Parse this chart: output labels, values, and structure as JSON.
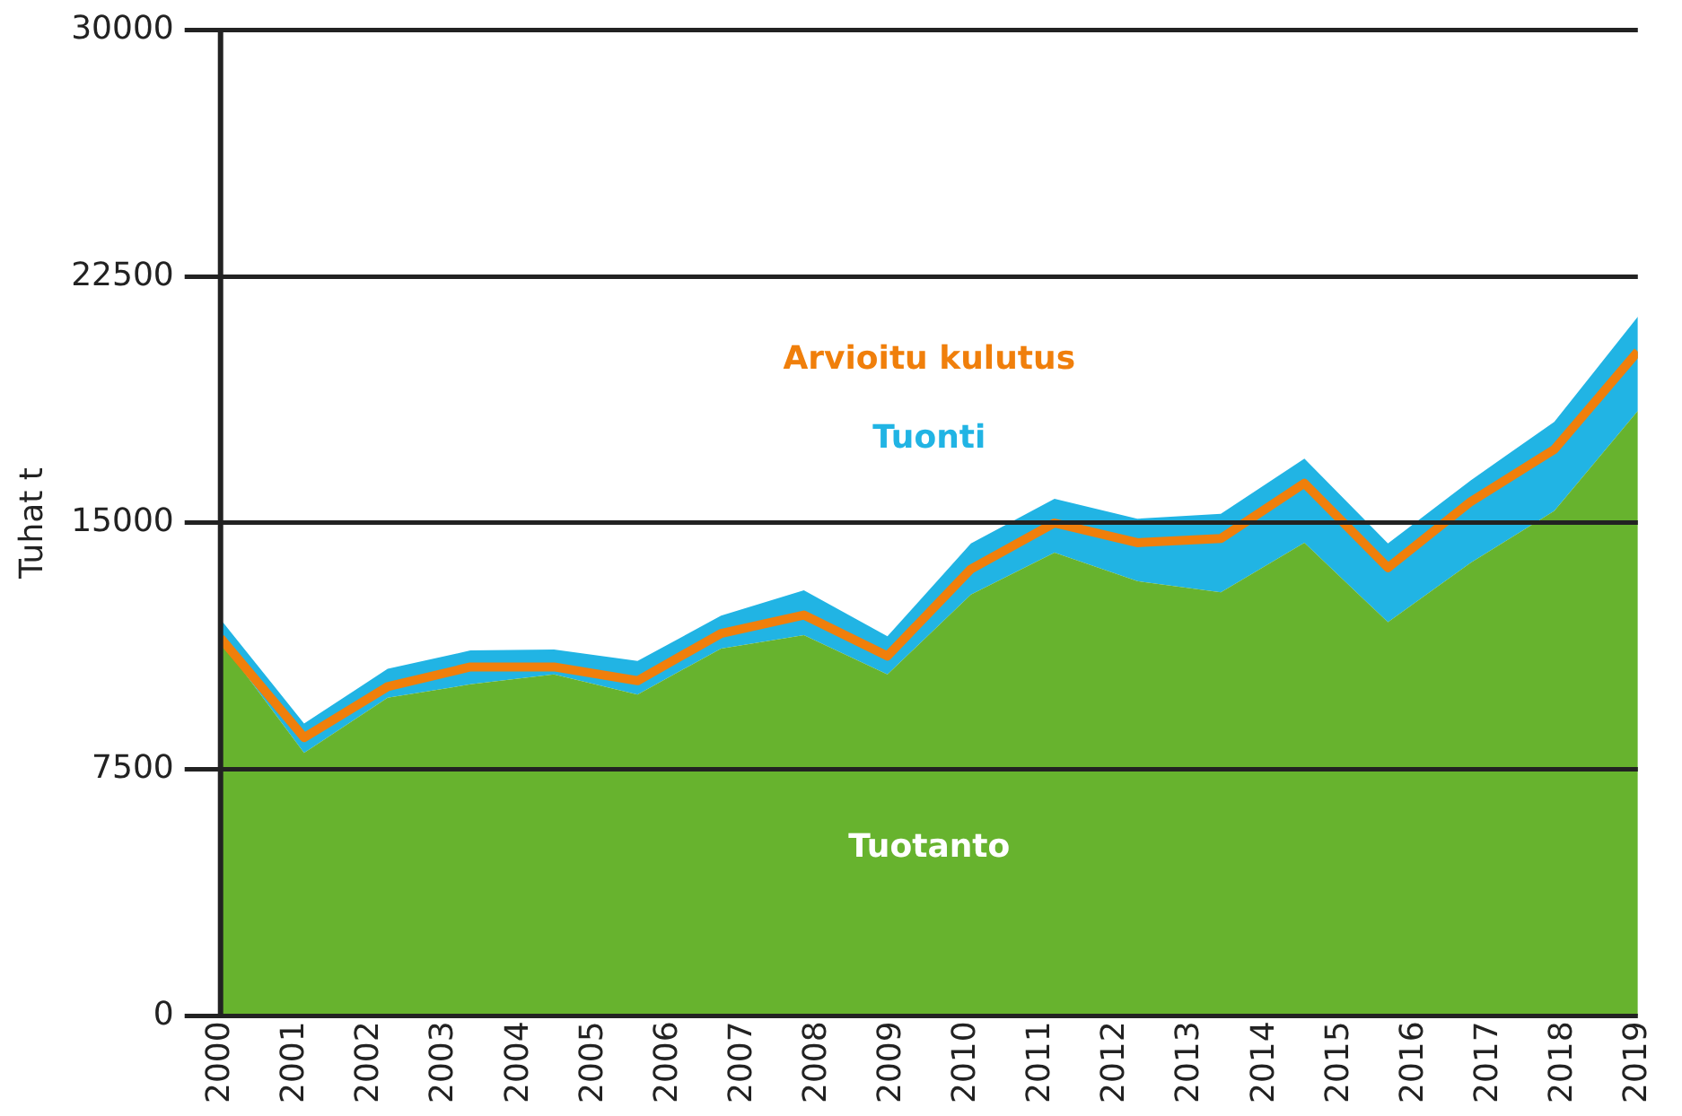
{
  "chart_data": {
    "type": "area",
    "ylabel": "Tuhat t",
    "stacked": true,
    "grid": "y",
    "legend": false,
    "marker": "none",
    "x": [
      2000,
      2001.12,
      2002.24,
      2003.35,
      2004.47,
      2005.59,
      2006.71,
      2007.82,
      2008.94,
      2010.06,
      2011.18,
      2012.29,
      2013.41,
      2014.53,
      2015.65,
      2016.76,
      2017.88,
      2019
    ],
    "xlim": [
      2000,
      2019
    ],
    "xticks": [
      2000,
      2001,
      2002,
      2003,
      2004,
      2005,
      2006,
      2007,
      2008,
      2009,
      2010,
      2011,
      2012,
      2013,
      2014,
      2015,
      2016,
      2017,
      2018,
      2019
    ],
    "ylim": [
      0,
      30000
    ],
    "yticks": [
      0,
      7500,
      15000,
      22500,
      30000
    ],
    "series": [
      {
        "name": "Tuotanto",
        "type": "area",
        "color": "#67b32e",
        "values": [
          11420,
          8000,
          9680,
          10090,
          10390,
          9780,
          11180,
          11590,
          10390,
          12820,
          14100,
          13230,
          12890,
          14400,
          11980,
          13790,
          15370,
          18410
        ]
      },
      {
        "name": "Tuonti",
        "type": "area",
        "color": "#21b4e4",
        "values": [
          650,
          900,
          880,
          1030,
          760,
          1020,
          1000,
          1360,
          1160,
          1560,
          1640,
          1900,
          2390,
          2560,
          2400,
          2510,
          2710,
          2870
        ]
      },
      {
        "name": "Arvioitu kulutus",
        "type": "line",
        "color": "#f07f0b",
        "values": [
          11500,
          8470,
          10020,
          10620,
          10620,
          10200,
          11640,
          12200,
          10950,
          13600,
          15000,
          14400,
          14530,
          16210,
          13640,
          15650,
          17240,
          20220
        ]
      }
    ]
  }
}
